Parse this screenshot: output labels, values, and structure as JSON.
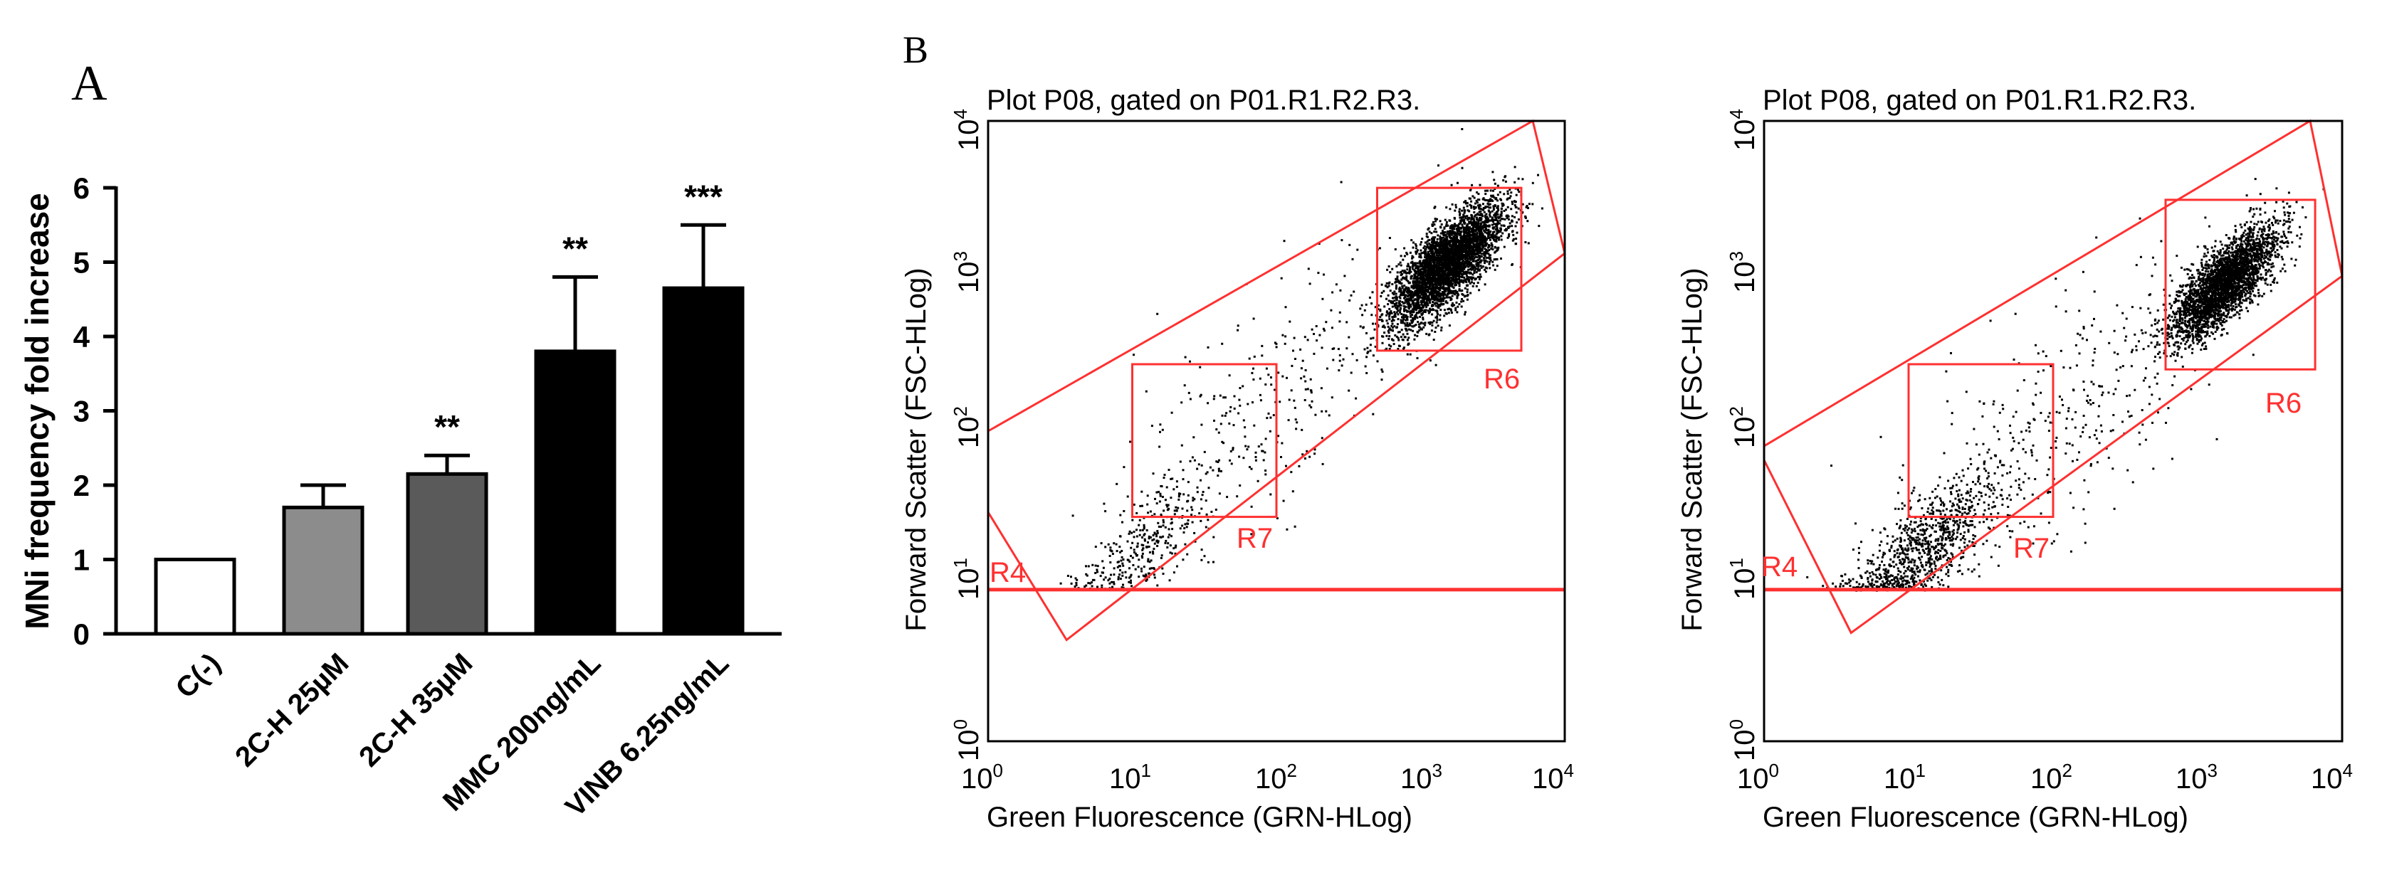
{
  "panel_a": {
    "label": "A",
    "ylabel": "MNi frequency fold increase",
    "ytick_labels": [
      "0",
      "1",
      "2",
      "3",
      "4",
      "5",
      "6"
    ]
  },
  "panel_b": {
    "label": "B",
    "plots": [
      {
        "title": "Plot P08, gated on P01.R1.R2.R3.",
        "xlabel": "Green Fluorescence (GRN-HLog)",
        "ylabel": "Forward Scatter (FSC-HLog)",
        "x_tick_bases": [
          "10",
          "10",
          "10",
          "10",
          "10"
        ],
        "x_tick_exponents": [
          "0",
          "1",
          "2",
          "3",
          "4"
        ],
        "y_tick_bases": [
          "10",
          "10",
          "10",
          "10",
          "10"
        ],
        "y_tick_exponents": [
          "0",
          "1",
          "2",
          "3",
          "4"
        ],
        "region_labels": [
          "R4",
          "R6",
          "R7"
        ]
      },
      {
        "title": "Plot P08, gated on P01.R1.R2.R3.",
        "xlabel": "Green Fluorescence (GRN-HLog)",
        "ylabel": "Forward Scatter (FSC-HLog)",
        "x_tick_bases": [
          "10",
          "10",
          "10",
          "10",
          "10"
        ],
        "x_tick_exponents": [
          "0",
          "1",
          "2",
          "3",
          "4"
        ],
        "y_tick_bases": [
          "10",
          "10",
          "10",
          "10",
          "10"
        ],
        "y_tick_exponents": [
          "0",
          "1",
          "2",
          "3",
          "4"
        ],
        "region_labels": [
          "R4",
          "R6",
          "R7"
        ]
      }
    ]
  },
  "colors": {
    "gate": "#ff3030",
    "dots": "#000000",
    "axis": "#000000",
    "bar_ctrl": "#ffffff",
    "bar_2ch25": "#8c8c8c",
    "bar_2ch35": "#5a5a5a",
    "bar_pos": "#000000"
  },
  "chart_data": [
    {
      "type": "bar",
      "categories": [
        "C(-)",
        "2C-H 25µM",
        "2C-H 35µM",
        "MMC 200ng/mL",
        "VINB 6.25ng/mL"
      ],
      "values": [
        1.0,
        1.7,
        2.15,
        3.8,
        4.65
      ],
      "errors": [
        0,
        0.3,
        0.25,
        1.0,
        0.85
      ],
      "significance": [
        "",
        "",
        "**",
        "**",
        "***"
      ],
      "ylabel": "MNi frequency fold increase",
      "ylim": [
        0,
        6
      ],
      "grid": false
    },
    {
      "type": "scatter",
      "title": "Plot P08, gated on P01.R1.R2.R3.",
      "xlabel": "Green Fluorescence (GRN-HLog)",
      "ylabel": "Forward Scatter (FSC-HLog)",
      "x_scale": "log",
      "y_scale": "log",
      "xlim": [
        1,
        10000
      ],
      "ylim": [
        1,
        10000
      ],
      "populations": [
        {
          "center_x": 1500,
          "center_y": 1200,
          "count": 3800,
          "spread_log": 0.2
        },
        {
          "center_x": 12,
          "center_y": 18,
          "count": 320,
          "spread_log": 0.22
        },
        {
          "center_x": 80,
          "center_y": 150,
          "count": 330,
          "spread_log": 0.55
        }
      ],
      "regions": [
        {
          "name": "R4",
          "shape": "polygon",
          "vertices": [
            [
              1,
              100
            ],
            [
              6000,
              10000
            ],
            [
              10000,
              1400
            ],
            [
              3.5,
              4.5
            ],
            [
              1,
              30
            ]
          ]
        },
        {
          "name": "R6",
          "shape": "rectangle",
          "x": [
            500,
            5000
          ],
          "y": [
            330,
            3700
          ]
        },
        {
          "name": "R7",
          "shape": "rectangle",
          "x": [
            10,
            100
          ],
          "y": [
            28,
            270
          ]
        },
        {
          "name": "threshold",
          "shape": "hline",
          "y": 9.5
        }
      ]
    },
    {
      "type": "scatter",
      "title": "Plot P08, gated on P01.R1.R2.R3.",
      "xlabel": "Green Fluorescence (GRN-HLog)",
      "ylabel": "Forward Scatter (FSC-HLog)",
      "x_scale": "log",
      "y_scale": "log",
      "xlim": [
        1,
        10000
      ],
      "ylim": [
        1,
        10000
      ],
      "populations": [
        {
          "center_x": 1500,
          "center_y": 900,
          "count": 3000,
          "spread_log": 0.18
        },
        {
          "center_x": 13,
          "center_y": 18,
          "count": 900,
          "spread_log": 0.25
        },
        {
          "center_x": 90,
          "center_y": 100,
          "count": 380,
          "spread_log": 0.55
        }
      ],
      "regions": [
        {
          "name": "R4",
          "shape": "polygon",
          "vertices": [
            [
              1,
              80
            ],
            [
              6000,
              10000
            ],
            [
              10000,
              1000
            ],
            [
              4,
              5
            ],
            [
              1,
              65
            ]
          ]
        },
        {
          "name": "R6",
          "shape": "rectangle",
          "x": [
            600,
            6500
          ],
          "y": [
            250,
            3100
          ]
        },
        {
          "name": "R7",
          "shape": "rectangle",
          "x": [
            10,
            100
          ],
          "y": [
            28,
            270
          ]
        },
        {
          "name": "threshold",
          "shape": "hline",
          "y": 9.5
        }
      ]
    }
  ]
}
